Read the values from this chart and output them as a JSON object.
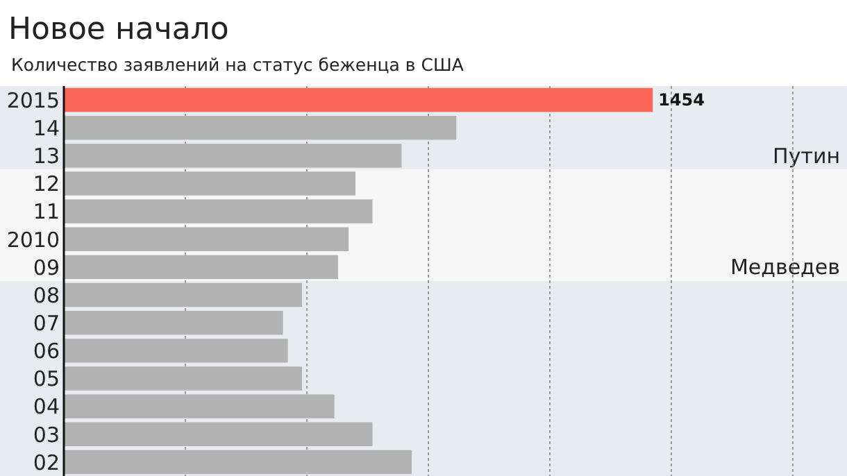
{
  "chart_data": {
    "type": "bar",
    "orientation": "horizontal",
    "title": "Новое начало",
    "subtitle": "Количество заявлений на статус беженца в США",
    "categories": [
      "2015",
      "14",
      "13",
      "12",
      "11",
      "2010",
      "09",
      "08",
      "07",
      "06",
      "05",
      "04",
      "03",
      "02"
    ],
    "values": [
      1454,
      969,
      834,
      720,
      762,
      703,
      677,
      588,
      541,
      553,
      588,
      668,
      762,
      859
    ],
    "colors": [
      "#f96557",
      "#b3b3b3",
      "#b3b3b3",
      "#b3b3b3",
      "#b3b3b3",
      "#b3b3b3",
      "#b3b3b3",
      "#b3b3b3",
      "#b3b3b3",
      "#b3b3b3",
      "#b3b3b3",
      "#b3b3b3",
      "#b3b3b3",
      "#b3b3b3"
    ],
    "value_labels": [
      "1454",
      null,
      null,
      null,
      null,
      null,
      null,
      null,
      null,
      null,
      null,
      null,
      null,
      null
    ],
    "xticks": [
      {
        "value": 300,
        "label": null
      },
      {
        "value": 600,
        "label": null
      },
      {
        "value": 900,
        "label": null
      },
      {
        "value": 1200,
        "label": null
      },
      {
        "value": 1500,
        "label": null
      },
      {
        "value": 1800,
        "label": null
      }
    ],
    "grid": "x",
    "tick_labels": "y",
    "line_style": "dotted",
    "bands": [
      {
        "axis": "y",
        "from": "2015",
        "to": "13",
        "label": "Путин",
        "color": "#e8ecf0"
      },
      {
        "axis": "y",
        "from": "12",
        "to": "09",
        "label": "Медведев",
        "color": "#f7f7f7"
      },
      {
        "axis": "y",
        "from": "08",
        "to": "02",
        "label": null,
        "color": "#e8ecf0"
      }
    ]
  }
}
